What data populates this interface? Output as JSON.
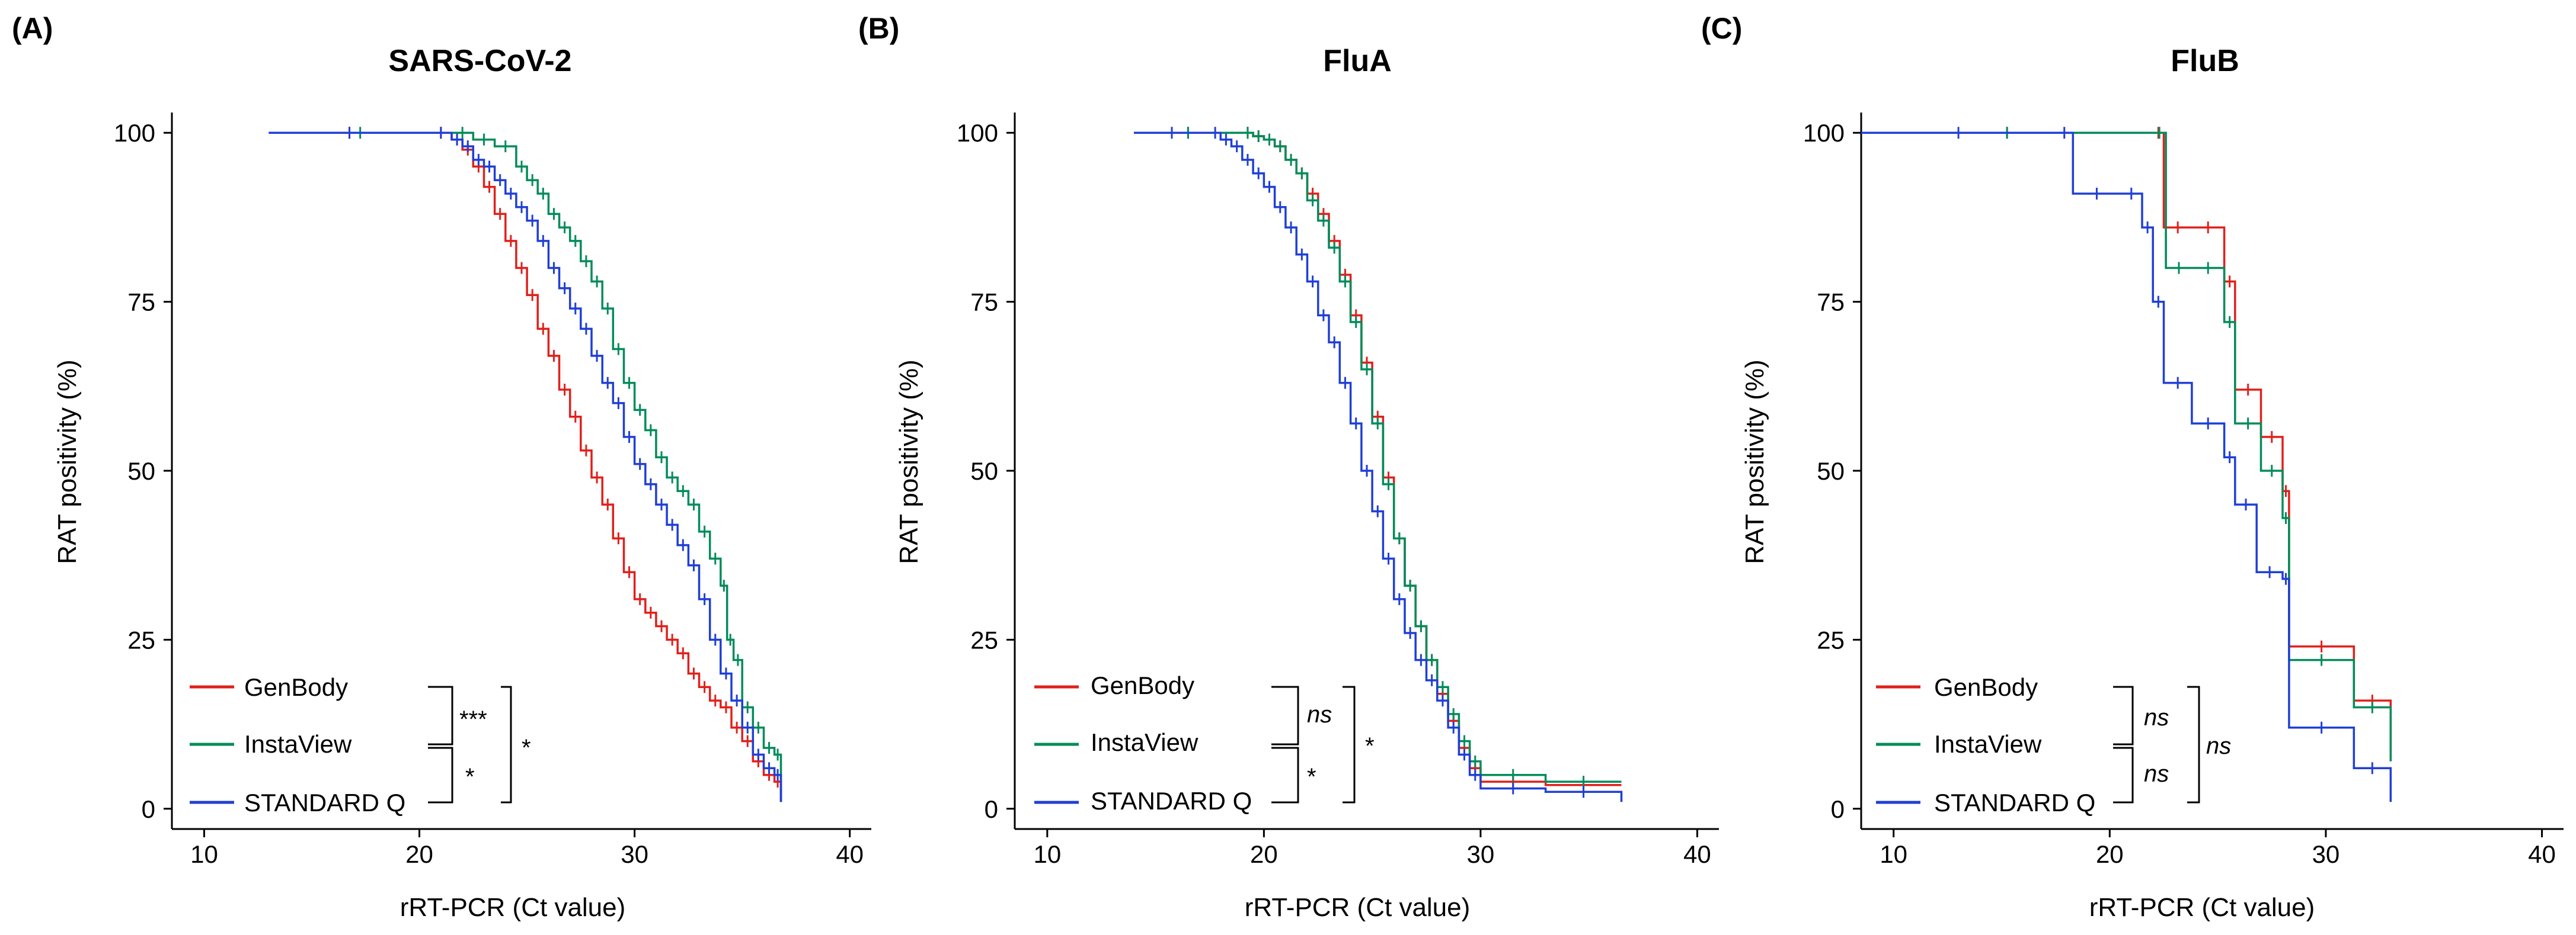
{
  "colors": {
    "GenBody": "#e0201b",
    "InstaView": "#008c5a",
    "STANDARD Q": "#1f3fd6"
  },
  "chart_data": [
    {
      "type": "line",
      "subtype": "kaplan-meier step curves",
      "panel_label": "(A)",
      "title": "SARS-CoV-2",
      "xlabel": "rRT-PCR (Ct value)",
      "ylabel": "RAT positivity (%)",
      "xlim": [
        8.5,
        41
      ],
      "ylim": [
        -3,
        103
      ],
      "xticks": [
        10,
        20,
        30,
        40
      ],
      "yticks": [
        0,
        25,
        50,
        75,
        100
      ],
      "grid": false,
      "legend_position": "bottom-left",
      "series": [
        {
          "name": "GenBody",
          "x": [
            13,
            20.5,
            21.5,
            22,
            22.5,
            23,
            23.5,
            24,
            24.5,
            25,
            25.5,
            26,
            26.5,
            27,
            27.5,
            28,
            28.5,
            29,
            29.5,
            30,
            30.5,
            31,
            31.5,
            32,
            32.5,
            33,
            33.5,
            34,
            34.5,
            35,
            35.5,
            36,
            36.5,
            36.8
          ],
          "y": [
            100,
            100,
            99,
            97.5,
            95,
            92,
            88,
            84,
            80,
            76,
            71,
            67,
            62,
            58,
            53,
            49,
            45,
            40,
            35,
            31,
            29,
            27,
            25,
            23,
            20,
            18,
            16,
            15,
            12,
            10,
            7,
            5,
            4,
            1
          ]
        },
        {
          "name": "InstaView",
          "x": [
            13,
            21.5,
            22.5,
            23.5,
            24.5,
            25,
            25.5,
            26,
            26.5,
            27,
            27.5,
            28,
            28.5,
            29,
            29.5,
            30,
            30.5,
            31,
            31.5,
            32,
            32.5,
            33,
            33.5,
            34,
            34.3,
            34.6,
            35,
            35.5,
            36,
            36.5,
            36.8
          ],
          "y": [
            100,
            100,
            99,
            98,
            95,
            93,
            91,
            88,
            86,
            84,
            81,
            78,
            74,
            68,
            63,
            59,
            56,
            52,
            49,
            47,
            45,
            41,
            37,
            33,
            25,
            22,
            15,
            12,
            9,
            8,
            1
          ]
        },
        {
          "name": "STANDARD Q",
          "x": [
            13,
            20.5,
            21.5,
            22,
            22.5,
            23,
            23.5,
            24,
            24.5,
            25,
            25.5,
            26,
            26.5,
            27,
            27.5,
            28,
            28.5,
            29,
            29.5,
            30,
            30.5,
            31,
            31.5,
            32,
            32.5,
            33,
            33.5,
            34,
            34.5,
            35,
            35.5,
            36,
            36.5,
            36.8
          ],
          "y": [
            100,
            100,
            99,
            98,
            96,
            95,
            93,
            91,
            89,
            87,
            84,
            80,
            77,
            74,
            71,
            67,
            63,
            60,
            55,
            51,
            48,
            45,
            42,
            39,
            36,
            31,
            25,
            20,
            16,
            12,
            8,
            6,
            5,
            1
          ]
        }
      ],
      "legend": [
        "GenBody",
        "InstaView",
        "STANDARD Q"
      ],
      "annotations": [
        {
          "text": "***",
          "italic": false,
          "bracket": "GenBody vs InstaView"
        },
        {
          "text": "*",
          "italic": false,
          "bracket": "InstaView vs STANDARD Q"
        },
        {
          "text": "*",
          "italic": false,
          "bracket": "GenBody vs STANDARD Q"
        }
      ]
    },
    {
      "type": "line",
      "subtype": "kaplan-meier step curves",
      "panel_label": "(B)",
      "title": "FluA",
      "xlabel": "rRT-PCR (Ct value)",
      "ylabel": "RAT positivity (%)",
      "xlim": [
        8.5,
        41
      ],
      "ylim": [
        -3,
        103
      ],
      "xticks": [
        10,
        20,
        30,
        40
      ],
      "yticks": [
        0,
        25,
        50,
        75,
        100
      ],
      "grid": false,
      "legend_position": "bottom-left",
      "series": [
        {
          "name": "GenBody",
          "x": [
            14,
            19,
            19.5,
            20,
            20.5,
            21,
            21.5,
            22,
            22.5,
            23,
            23.5,
            24,
            24.5,
            25,
            25.5,
            26,
            26.5,
            27,
            27.5,
            28,
            28.5,
            29,
            29.5,
            30,
            33,
            36.5
          ],
          "y": [
            100,
            100,
            99.5,
            99,
            98,
            96,
            94,
            91,
            88,
            84,
            79,
            73,
            66,
            58,
            49,
            40,
            33,
            27,
            22,
            17,
            13,
            9,
            6,
            4,
            3.5,
            3.5
          ]
        },
        {
          "name": "InstaView",
          "x": [
            14,
            19,
            19.5,
            20,
            20.5,
            21,
            21.5,
            22,
            22.5,
            23,
            23.5,
            24,
            24.5,
            25,
            25.5,
            26,
            26.5,
            27,
            27.5,
            28,
            28.5,
            29,
            29.5,
            30,
            33,
            36.5
          ],
          "y": [
            100,
            100,
            99.5,
            99,
            98,
            96,
            94,
            90,
            87,
            83,
            78,
            72,
            65,
            57,
            48,
            40,
            33,
            27,
            22,
            18,
            14,
            10,
            7,
            5,
            4,
            4
          ]
        },
        {
          "name": "STANDARD Q",
          "x": [
            14,
            17.5,
            18,
            18.5,
            19,
            19.5,
            20,
            20.5,
            21,
            21.5,
            22,
            22.5,
            23,
            23.5,
            24,
            24.5,
            25,
            25.5,
            26,
            26.5,
            27,
            27.5,
            28,
            28.5,
            29,
            29.5,
            30,
            33,
            36.5
          ],
          "y": [
            100,
            100,
            99,
            98,
            96,
            94,
            92,
            89,
            86,
            82,
            78,
            73,
            69,
            63,
            57,
            50,
            44,
            37,
            31,
            26,
            22,
            19,
            16,
            12,
            8,
            5,
            3,
            2.5,
            1
          ]
        }
      ],
      "legend": [
        "GenBody",
        "InstaView",
        "STANDARD Q"
      ],
      "annotations": [
        {
          "text": "ns",
          "italic": true,
          "bracket": "GenBody vs InstaView"
        },
        {
          "text": "*",
          "italic": false,
          "bracket": "InstaView vs STANDARD Q"
        },
        {
          "text": "*",
          "italic": false,
          "bracket": "GenBody vs STANDARD Q"
        }
      ]
    },
    {
      "type": "line",
      "subtype": "kaplan-meier step curves",
      "panel_label": "(C)",
      "title": "FluB",
      "xlabel": "rRT-PCR (Ct value)",
      "ylabel": "RAT positivity (%)",
      "xlim": [
        8.5,
        41
      ],
      "ylim": [
        -3,
        103
      ],
      "xticks": [
        10,
        20,
        30,
        40
      ],
      "yticks": [
        0,
        25,
        50,
        75,
        100
      ],
      "grid": false,
      "legend_position": "bottom-left",
      "series": [
        {
          "name": "GenBody",
          "x": [
            8.5,
            22,
            22.5,
            23.8,
            25.3,
            25.8,
            27,
            28,
            28.3,
            31.3,
            33
          ],
          "y": [
            100,
            100,
            86,
            86,
            78,
            62,
            55,
            47,
            24,
            16,
            8
          ]
        },
        {
          "name": "InstaView",
          "x": [
            8.5,
            22,
            22.6,
            23.8,
            25.3,
            25.8,
            27,
            28,
            28.3,
            31.3,
            33
          ],
          "y": [
            100,
            100,
            80,
            80,
            72,
            57,
            50,
            43,
            22,
            15,
            7
          ]
        },
        {
          "name": "STANDARD Q",
          "x": [
            8.5,
            17.5,
            18.3,
            20.5,
            21.5,
            22,
            22.5,
            23.8,
            25.3,
            25.8,
            26.8,
            28,
            28.3,
            31.3,
            33
          ],
          "y": [
            100,
            100,
            91,
            91,
            86,
            75,
            63,
            57,
            52,
            45,
            35,
            34,
            12,
            6,
            1
          ]
        }
      ],
      "legend": [
        "GenBody",
        "InstaView",
        "STANDARD Q"
      ],
      "annotations": [
        {
          "text": "ns",
          "italic": true,
          "bracket": "GenBody vs InstaView"
        },
        {
          "text": "ns",
          "italic": true,
          "bracket": "InstaView vs STANDARD Q"
        },
        {
          "text": "ns",
          "italic": true,
          "bracket": "GenBody vs STANDARD Q"
        }
      ]
    }
  ]
}
